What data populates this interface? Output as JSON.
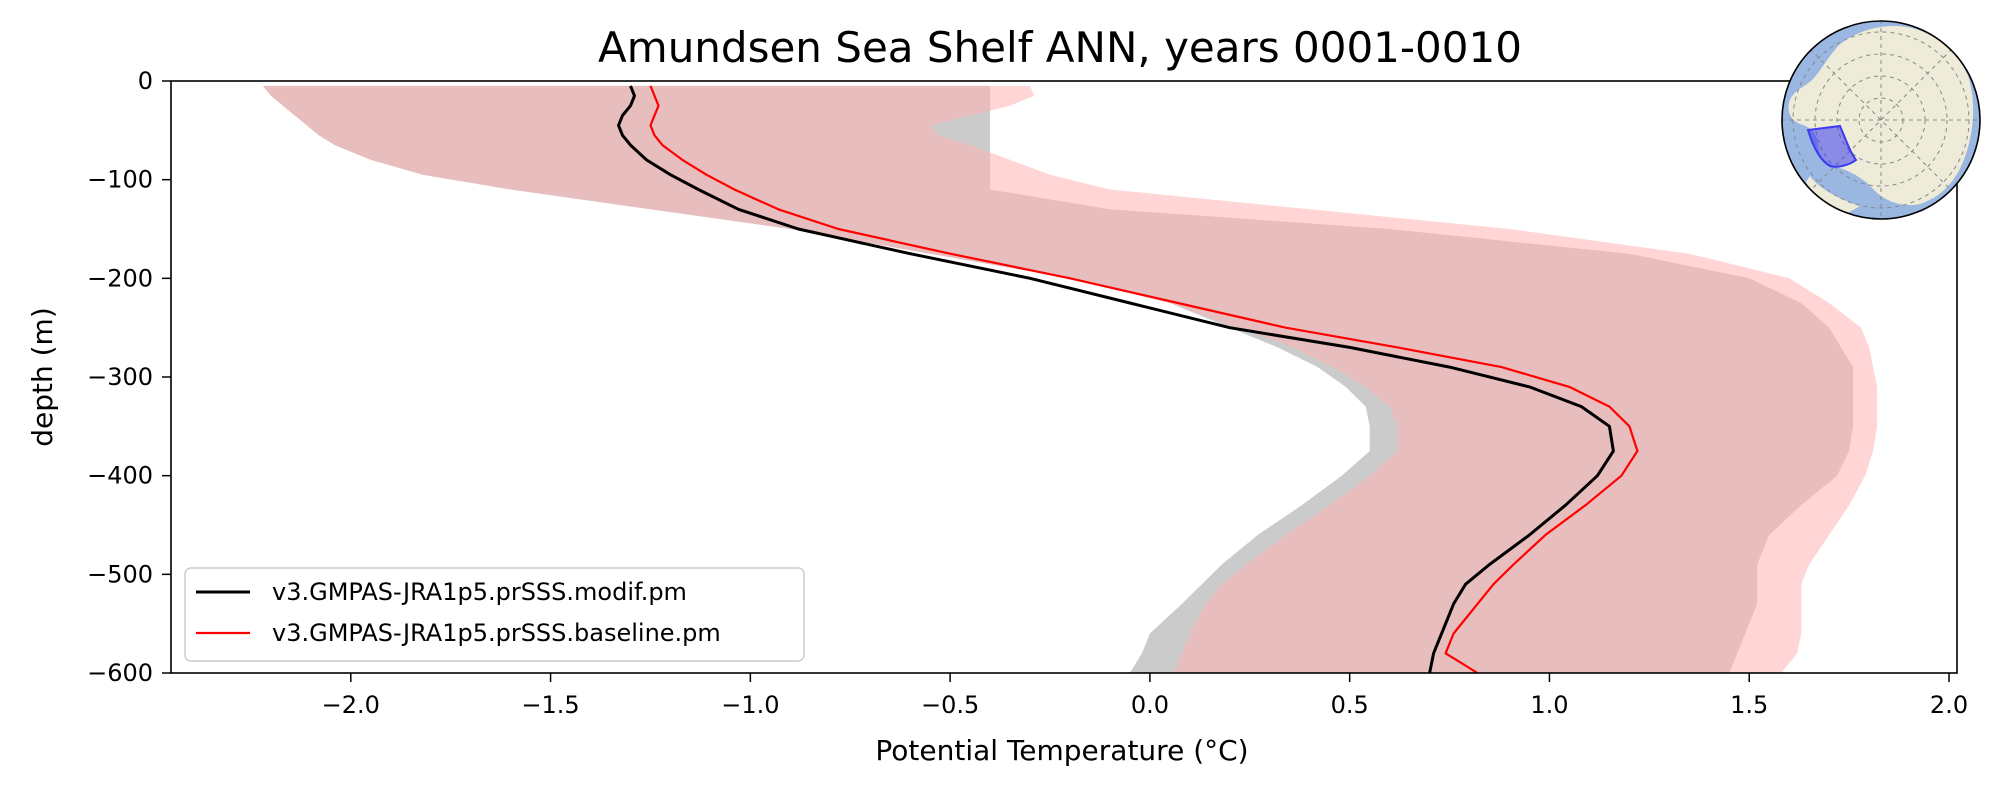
{
  "chart_data": {
    "type": "line",
    "title": "Amundsen Sea Shelf ANN, years 0001-0010",
    "xlabel": "Potential Temperature (°C)",
    "ylabel": "depth (m)",
    "xlim": [
      -2.45,
      2.02
    ],
    "ylim": [
      -600,
      0
    ],
    "x_ticks": [
      -2.0,
      -1.5,
      -1.0,
      -0.5,
      0.0,
      0.5,
      1.0,
      1.5,
      2.0
    ],
    "x_tick_labels": [
      "−2.0",
      "−1.5",
      "−1.0",
      "−0.5",
      "0.0",
      "0.5",
      "1.0",
      "1.5",
      "2.0"
    ],
    "y_ticks": [
      0,
      -100,
      -200,
      -300,
      -400,
      -500,
      -600
    ],
    "y_tick_labels": [
      "0",
      "−100",
      "−200",
      "−300",
      "−400",
      "−500",
      "−600"
    ],
    "grid": false,
    "legend_position": "lower-left",
    "series": [
      {
        "name": "v3.GMPAS-JRA1p5.prSSS.modif.pm",
        "color": "#000000",
        "band_color": "#a0a0a0",
        "depth": [
          -5,
          -15,
          -25,
          -35,
          -45,
          -55,
          -65,
          -80,
          -95,
          -110,
          -130,
          -150,
          -175,
          -200,
          -225,
          -250,
          -270,
          -290,
          -310,
          -330,
          -350,
          -375,
          -400,
          -430,
          -460,
          -490,
          -510,
          -530,
          -560,
          -580,
          -600
        ],
        "mean": [
          -1.3,
          -1.29,
          -1.3,
          -1.32,
          -1.33,
          -1.32,
          -1.3,
          -1.26,
          -1.2,
          -1.13,
          -1.03,
          -0.88,
          -0.6,
          -0.3,
          -0.05,
          0.2,
          0.5,
          0.75,
          0.95,
          1.08,
          1.15,
          1.16,
          1.12,
          1.04,
          0.95,
          0.85,
          0.79,
          0.76,
          0.73,
          0.71,
          0.7
        ],
        "lower": [
          -2.22,
          -2.2,
          -2.17,
          -2.14,
          -2.11,
          -2.08,
          -2.04,
          -1.95,
          -1.82,
          -1.6,
          -1.25,
          -0.9,
          -0.55,
          -0.2,
          0.05,
          0.2,
          0.32,
          0.42,
          0.49,
          0.54,
          0.55,
          0.55,
          0.48,
          0.38,
          0.27,
          0.18,
          0.13,
          0.08,
          0.0,
          -0.02,
          -0.05
        ],
        "upper": [
          -0.4,
          -0.4,
          -0.4,
          -0.4,
          -0.4,
          -0.4,
          -0.4,
          -0.4,
          -0.4,
          -0.4,
          -0.1,
          0.6,
          1.2,
          1.5,
          1.63,
          1.7,
          1.73,
          1.76,
          1.76,
          1.76,
          1.76,
          1.75,
          1.72,
          1.63,
          1.55,
          1.52,
          1.52,
          1.52,
          1.49,
          1.47,
          1.45
        ]
      },
      {
        "name": "v3.GMPAS-JRA1p5.prSSS.baseline.pm",
        "color": "#ff0000",
        "band_color": "#ffb3b3",
        "depth": [
          -5,
          -15,
          -25,
          -35,
          -45,
          -55,
          -65,
          -80,
          -95,
          -110,
          -130,
          -150,
          -175,
          -200,
          -225,
          -250,
          -270,
          -290,
          -310,
          -330,
          -350,
          -375,
          -400,
          -430,
          -460,
          -490,
          -510,
          -530,
          -560,
          -580,
          -600
        ],
        "mean": [
          -1.25,
          -1.24,
          -1.23,
          -1.24,
          -1.25,
          -1.24,
          -1.22,
          -1.17,
          -1.11,
          -1.04,
          -0.93,
          -0.78,
          -0.5,
          -0.2,
          0.07,
          0.34,
          0.62,
          0.88,
          1.05,
          1.15,
          1.2,
          1.22,
          1.18,
          1.09,
          0.99,
          0.91,
          0.86,
          0.82,
          0.76,
          0.74,
          0.82
        ],
        "lower": [
          -2.22,
          -2.2,
          -2.17,
          -2.14,
          -2.11,
          -2.08,
          -2.04,
          -1.95,
          -1.82,
          -1.6,
          -1.25,
          -0.9,
          -0.55,
          -0.2,
          0.05,
          0.22,
          0.36,
          0.46,
          0.54,
          0.6,
          0.62,
          0.62,
          0.55,
          0.45,
          0.34,
          0.24,
          0.18,
          0.14,
          0.1,
          0.08,
          0.06
        ],
        "upper": [
          -0.3,
          -0.29,
          -0.35,
          -0.45,
          -0.55,
          -0.53,
          -0.45,
          -0.35,
          -0.25,
          -0.1,
          0.4,
          0.9,
          1.35,
          1.6,
          1.7,
          1.78,
          1.8,
          1.81,
          1.82,
          1.82,
          1.82,
          1.81,
          1.79,
          1.75,
          1.7,
          1.65,
          1.63,
          1.63,
          1.63,
          1.62,
          1.58
        ]
      }
    ]
  },
  "inset_map": {
    "ocean_color": "#9ab7e2",
    "land_color": "#eeebd8",
    "region_color": "#3b3bf0"
  }
}
